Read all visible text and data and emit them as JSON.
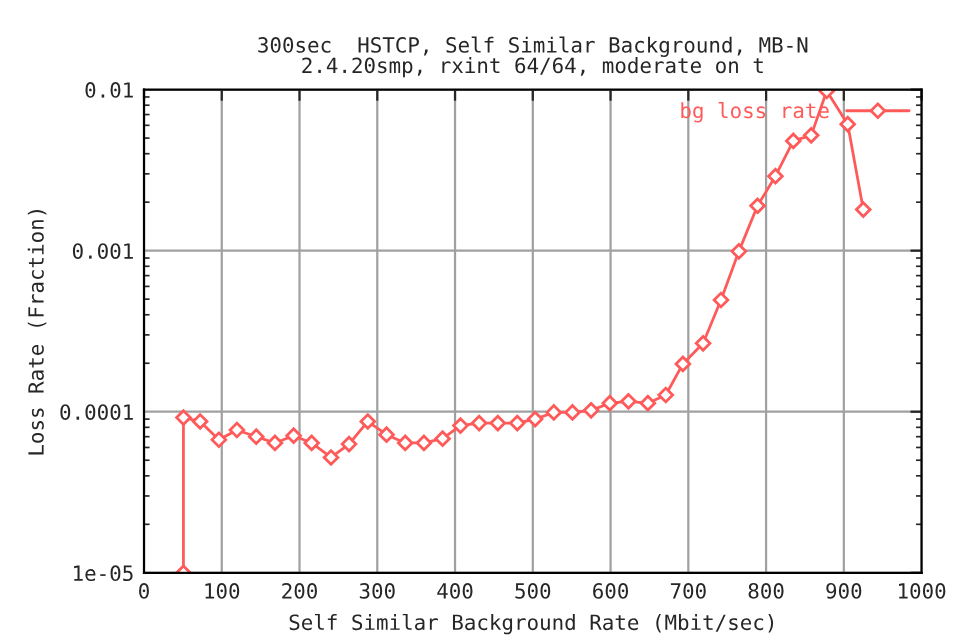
{
  "chart_data": {
    "type": "line",
    "title": "300sec  HSTCP, Self Similar Background, MB-N\n2.4.20smp, rxint 64/64, moderate on t",
    "xlabel": "Self Similar Background Rate (Mbit/sec)",
    "ylabel": "Loss Rate (Fraction)",
    "series": [
      {
        "name": "bg loss rate",
        "color": "#ff5a5a",
        "x": [
          50.7,
          50.7,
          72.2,
          96.3,
          119.5,
          144.3,
          168.4,
          192.4,
          215.6,
          240.5,
          263.7,
          287.8,
          311.9,
          335.9,
          360,
          384,
          407,
          431,
          455,
          480,
          503,
          527,
          551,
          575,
          599,
          623,
          648,
          671,
          693,
          719,
          742,
          765,
          789,
          812,
          835,
          858,
          878,
          905,
          925
        ],
        "values": [
          1e-05,
          9.2e-05,
          8.7e-05,
          6.7e-05,
          7.7e-05,
          7e-05,
          6.4e-05,
          7.1e-05,
          6.4e-05,
          5.2e-05,
          6.3e-05,
          8.7e-05,
          7.2e-05,
          6.4e-05,
          6.4e-05,
          6.8e-05,
          8.2e-05,
          8.5e-05,
          8.5e-05,
          8.5e-05,
          9e-05,
          9.9e-05,
          9.9e-05,
          0.000102,
          0.000113,
          0.000116,
          0.000113,
          0.000127,
          0.000198,
          0.000266,
          0.000494,
          0.00099,
          0.0019,
          0.0029,
          0.0048,
          0.0052,
          0.0098,
          0.0061,
          0.0018
        ]
      }
    ],
    "xlim": [
      0,
      1000
    ],
    "xticks": [
      0,
      100,
      200,
      300,
      400,
      500,
      600,
      700,
      800,
      900,
      1000
    ],
    "ylim": [
      1e-05,
      0.01
    ],
    "yticks": [
      {
        "value": 1e-05,
        "label": "1e-05"
      },
      {
        "value": 0.0001,
        "label": "0.0001"
      },
      {
        "value": 0.001,
        "label": "0.001"
      },
      {
        "value": 0.01,
        "label": "0.01"
      }
    ],
    "log": "y",
    "grid": true,
    "legend": "top right",
    "marker": "diamond",
    "line_style": "solid"
  }
}
